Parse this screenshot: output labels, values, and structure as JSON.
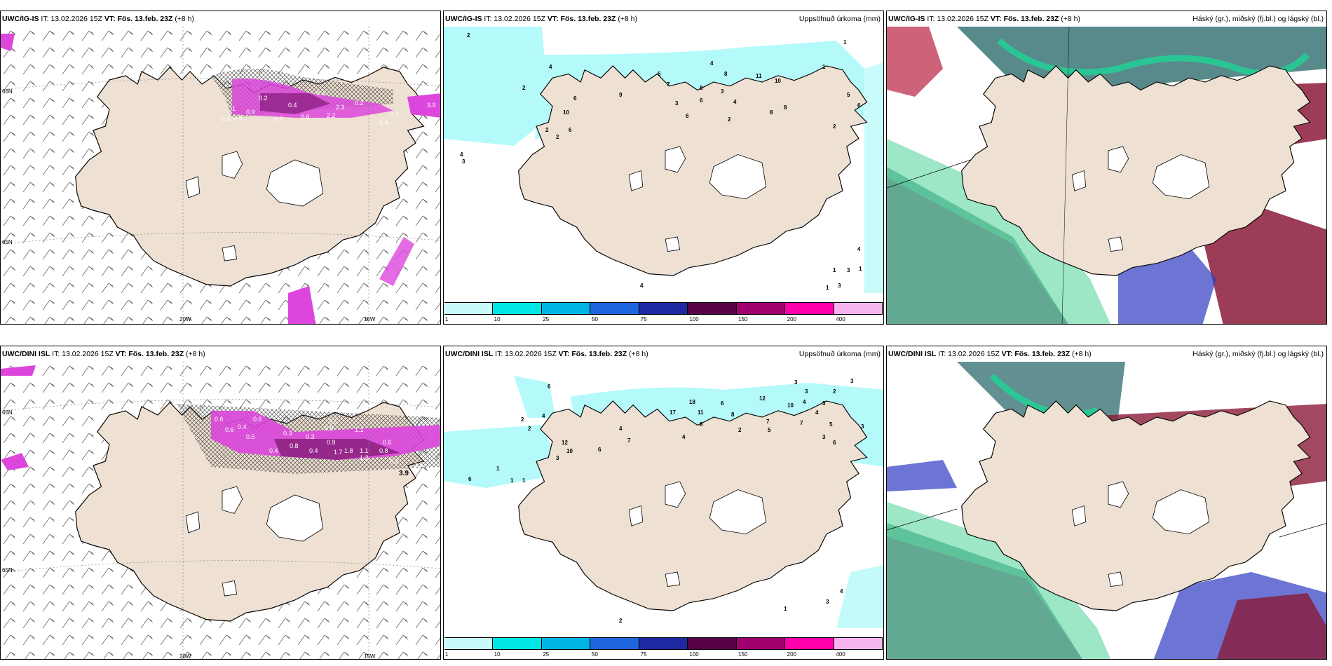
{
  "panels": {
    "p1": {
      "model": "UWC/IG-IS",
      "it": "IT: 13.02.2026 15Z",
      "vt_label": "VT:",
      "vt": "Fös. 13.feb. 23Z",
      "lead": "(+8 h)",
      "right": ""
    },
    "p2": {
      "model": "UWC/IG-IS",
      "it": "IT: 13.02.2026 15Z",
      "vt_label": "VT:",
      "vt": "Fös. 13.feb. 23Z",
      "lead": "(+8 h)",
      "right": "Uppsöfnuð úrkoma (mm)"
    },
    "p3": {
      "model": "UWC/IG-IS",
      "it": "IT: 13.02.2026 15Z",
      "vt_label": "VT:",
      "vt": "Fös. 13.feb. 23Z",
      "lead": "(+8 h)",
      "right": "Háský (gr.), miðský (fj.bl.) og lágský (bl.)"
    },
    "p4": {
      "model": "UWC/DINI ISL",
      "it": "IT: 13.02.2026 15Z",
      "vt_label": "VT:",
      "vt": "Fös. 13.feb. 23Z",
      "lead": "(+8 h)",
      "right": ""
    },
    "p5": {
      "model": "UWC/DINI ISL",
      "it": "IT: 13.02.2026 15Z",
      "vt_label": "VT:",
      "vt": "Fös. 13.feb. 23Z",
      "lead": "(+8 h)",
      "right": "Uppsöfnuð úrkoma (mm)"
    },
    "p6": {
      "model": "UWC/DINI ISL",
      "it": "IT: 13.02.2026 15Z",
      "vt_label": "VT:",
      "vt": "Fös. 13.feb. 23Z",
      "lead": "(+8 h)",
      "right": "Háský (gr.), miðský (fj.bl.) og lágský (bl.)"
    }
  },
  "axis_labels": {
    "lat66": "66N",
    "lat65": "65N",
    "lon20": "20W",
    "lon15": "15W"
  },
  "colorbar": {
    "ticks": [
      "1",
      "10",
      "25",
      "50",
      "75",
      "100",
      "150",
      "200",
      "400"
    ],
    "colors": [
      "#c8fafa",
      "#00e6e6",
      "#00b4e6",
      "#1e64dc",
      "#1e28a0",
      "#5a0046",
      "#a0006e",
      "#ff00aa",
      "#f5b4f0"
    ]
  },
  "colors": {
    "land": "#eee0d2",
    "precip_light": "#b4fafa",
    "snow": "#dc46dc",
    "snow_dark": "#96288c"
  },
  "p1_values": [
    "0.6",
    "0.8",
    "0.9",
    "0.7",
    "0.4",
    "0.6",
    "2.2",
    "0.2",
    "0.4",
    "0.1",
    "0.2",
    "0.4",
    "1",
    "2.3",
    "3.9",
    "2.7"
  ],
  "p2_values": [
    "2",
    "4",
    "2",
    "10",
    "6",
    "6",
    "2",
    "2",
    "9",
    "6",
    "7",
    "3",
    "4",
    "8",
    "6",
    "6",
    "3",
    "8",
    "4",
    "11",
    "10",
    "2",
    "8",
    "8",
    "5",
    "6",
    "2",
    "1",
    "1",
    "4",
    "3",
    "4",
    "1",
    "3",
    "1",
    "1",
    "3",
    "4"
  ],
  "p4_values": [
    "0.6",
    "0.6",
    "0.4",
    "0.6",
    "0.9",
    "0.5",
    "0.4",
    "0.3",
    "0.8",
    "0.3",
    "0.9",
    "1.7",
    "1.8",
    "1.1",
    "1.3",
    "1.1",
    "0.8",
    "0.2",
    "3.9",
    "1.5",
    "0.4",
    "0.6",
    "0.5"
  ],
  "p5_values": [
    "6",
    "2",
    "2",
    "4",
    "12",
    "3",
    "10",
    "1",
    "1",
    "1",
    "6",
    "6",
    "4",
    "7",
    "18",
    "17",
    "11",
    "8",
    "4",
    "6",
    "8",
    "2",
    "12",
    "7",
    "5",
    "3",
    "10",
    "3",
    "4",
    "4",
    "7",
    "3",
    "5",
    "3",
    "6",
    "3",
    "2",
    "3",
    "4",
    "1",
    "3",
    "2"
  ]
}
